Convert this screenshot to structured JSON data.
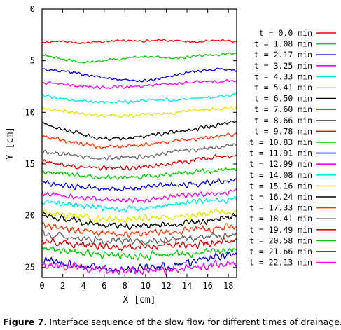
{
  "caption": {
    "label": "Figure 7",
    "text": ". Interface sequence of the slow flow for different times of drainage."
  },
  "chart_data": {
    "type": "line",
    "title": "",
    "xlabel": "X [cm]",
    "ylabel": "Y [cm]",
    "xlim": [
      0,
      18.8
    ],
    "ylim": [
      0,
      26
    ],
    "y_inverted": true,
    "x_ticks": [
      0,
      2,
      4,
      6,
      8,
      10,
      12,
      14,
      16,
      18
    ],
    "y_ticks": [
      0,
      5,
      10,
      15,
      20,
      25
    ],
    "legend_position": "right",
    "series": [
      {
        "name": "t = 0.0 min",
        "color": "#ff0000",
        "profile": [
          3.2,
          3.1,
          3.3,
          3.2,
          3.0,
          3.1,
          3.0,
          3.1,
          3.2,
          3.0,
          3.1
        ]
      },
      {
        "name": "t = 1.08 min",
        "color": "#00cc00",
        "profile": [
          4.4,
          4.8,
          5.2,
          5.0,
          4.8,
          4.6,
          4.7,
          4.8,
          4.5,
          4.4,
          4.3
        ]
      },
      {
        "name": "t = 2.17 min",
        "color": "#0000cc",
        "profile": [
          5.8,
          6.0,
          6.3,
          6.6,
          6.8,
          7.0,
          6.7,
          6.3,
          6.0,
          5.8,
          5.9
        ]
      },
      {
        "name": "t = 3.25 min",
        "color": "#ff00ff",
        "profile": [
          7.1,
          7.3,
          7.5,
          7.6,
          7.6,
          7.5,
          7.3,
          7.2,
          7.1,
          7.0,
          6.9
        ]
      },
      {
        "name": "t = 4.33 min",
        "color": "#00e5e5",
        "profile": [
          8.3,
          8.7,
          8.9,
          9.0,
          9.0,
          8.9,
          8.8,
          8.8,
          8.6,
          8.5,
          8.3
        ]
      },
      {
        "name": "t = 5.41 min",
        "color": "#e5e500",
        "profile": [
          9.6,
          9.9,
          10.1,
          10.3,
          10.4,
          10.3,
          10.1,
          10.0,
          9.8,
          9.7,
          9.5
        ]
      },
      {
        "name": "t = 6.50 min",
        "color": "#000000",
        "profile": [
          11.0,
          11.6,
          12.1,
          12.5,
          12.6,
          12.4,
          12.1,
          11.9,
          11.6,
          11.2,
          10.8
        ]
      },
      {
        "name": "t = 7.60 min",
        "color": "#ff3300",
        "profile": [
          12.3,
          12.7,
          13.1,
          13.3,
          13.3,
          13.2,
          13.0,
          12.8,
          12.5,
          12.3,
          12.1
        ]
      },
      {
        "name": "t = 8.66 min",
        "color": "#666666",
        "profile": [
          13.8,
          14.0,
          14.3,
          14.5,
          14.4,
          14.3,
          14.1,
          13.8,
          13.6,
          13.3,
          13.2
        ]
      },
      {
        "name": "t = 9.78 min",
        "color": "#dd0000",
        "profile": [
          14.8,
          15.0,
          15.3,
          15.4,
          15.4,
          15.3,
          15.1,
          14.9,
          14.6,
          14.3,
          14.1
        ]
      },
      {
        "name": "t = 10.83 min",
        "color": "#00cc00",
        "profile": [
          15.8,
          15.9,
          16.1,
          16.3,
          16.3,
          16.2,
          16.0,
          15.9,
          15.8,
          15.6,
          15.4
        ]
      },
      {
        "name": "t = 11.91 min",
        "color": "#0000ff",
        "profile": [
          16.8,
          17.0,
          17.2,
          17.4,
          17.4,
          17.3,
          17.1,
          17.0,
          16.9,
          16.7,
          16.5
        ]
      },
      {
        "name": "t = 12.99 min",
        "color": "#ff00ff",
        "profile": [
          17.8,
          18.0,
          18.3,
          18.5,
          18.6,
          18.5,
          18.3,
          18.1,
          18.0,
          17.8,
          17.7
        ]
      },
      {
        "name": "t = 14.08 min",
        "color": "#00e5e5",
        "profile": [
          18.6,
          18.8,
          19.1,
          19.3,
          19.4,
          19.3,
          19.1,
          18.9,
          18.7,
          18.5,
          18.4
        ]
      },
      {
        "name": "t = 15.16 min",
        "color": "#e5e500",
        "profile": [
          19.7,
          19.9,
          20.1,
          20.3,
          20.4,
          20.3,
          20.2,
          20.1,
          19.9,
          19.7,
          19.5
        ]
      },
      {
        "name": "t = 16.24 min",
        "color": "#000000",
        "profile": [
          20.0,
          20.3,
          20.6,
          20.9,
          21.0,
          21.0,
          20.9,
          20.8,
          20.6,
          20.3,
          20.1
        ]
      },
      {
        "name": "t = 17.33 min",
        "color": "#ff3300",
        "profile": [
          21.0,
          21.2,
          21.5,
          21.7,
          21.8,
          21.8,
          21.7,
          21.6,
          21.4,
          21.2,
          21.0
        ]
      },
      {
        "name": "t = 18.41 min",
        "color": "#666666",
        "profile": [
          21.8,
          22.0,
          22.2,
          22.4,
          22.5,
          22.5,
          22.4,
          22.3,
          22.2,
          22.0,
          21.9
        ]
      },
      {
        "name": "t = 19.49 min",
        "color": "#dd0000",
        "profile": [
          22.4,
          22.6,
          22.8,
          23.0,
          23.1,
          23.1,
          23.0,
          22.9,
          22.8,
          22.6,
          22.5
        ]
      },
      {
        "name": "t = 20.58 min",
        "color": "#00cc00",
        "profile": [
          23.2,
          23.4,
          23.6,
          23.8,
          23.9,
          23.9,
          23.8,
          23.7,
          23.6,
          23.4,
          23.3
        ]
      },
      {
        "name": "t = 21.66 min",
        "color": "#0000cc",
        "profile": [
          24.3,
          24.6,
          24.9,
          25.1,
          25.2,
          25.1,
          25.0,
          24.8,
          24.4,
          24.0,
          23.7
        ]
      },
      {
        "name": "t = 22.13 min",
        "color": "#ff00ff",
        "profile": [
          24.7,
          24.8,
          25.0,
          25.3,
          25.4,
          25.4,
          25.3,
          25.2,
          25.0,
          24.8,
          24.6
        ]
      }
    ]
  }
}
